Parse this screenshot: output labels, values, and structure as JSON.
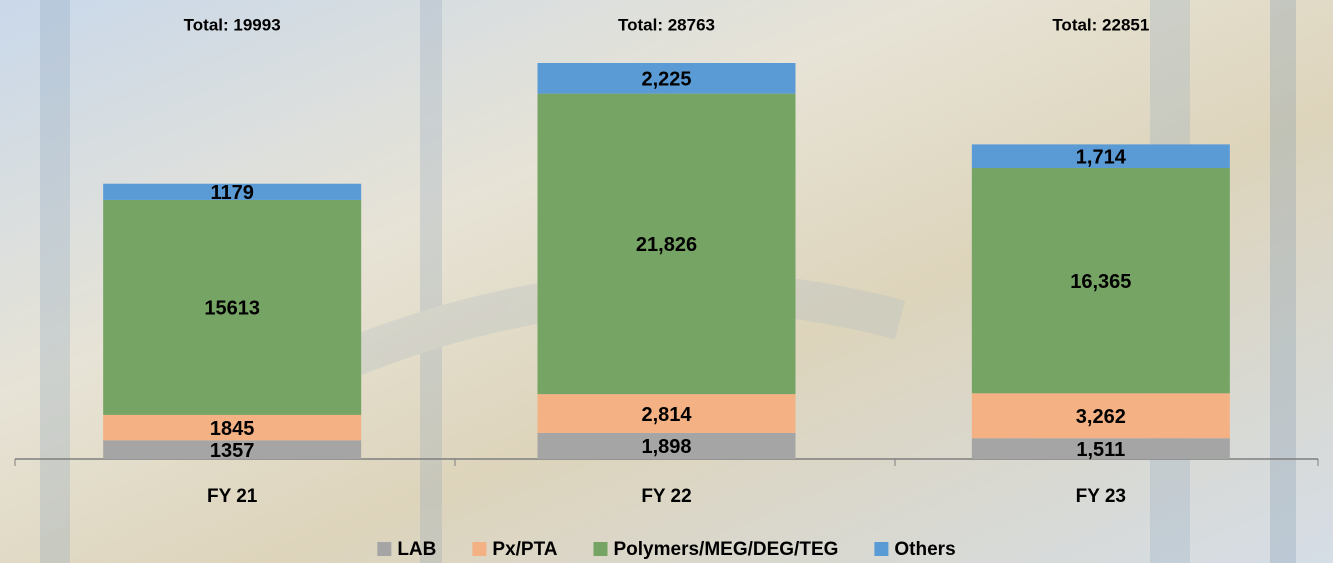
{
  "chart_data": {
    "type": "stacked_bar",
    "categories": [
      "FY 21",
      "FY 22",
      "FY 23"
    ],
    "series": [
      {
        "name": "LAB",
        "color": "#a5a5a5",
        "values": [
          1357,
          1898,
          1511
        ],
        "value_labels": [
          "1357",
          "1,898",
          "1,511"
        ]
      },
      {
        "name": "Px/PTA",
        "color": "#f4b183",
        "values": [
          1845,
          2814,
          3262
        ],
        "value_labels": [
          "1845",
          "2,814",
          "3,262"
        ]
      },
      {
        "name": "Polymers/MEG/DEG/TEG",
        "color": "#76a464",
        "values": [
          15613,
          21826,
          16365
        ],
        "value_labels": [
          "15613",
          "21,826",
          "16,365"
        ]
      },
      {
        "name": "Others",
        "color": "#5b9bd5",
        "values": [
          1179,
          2225,
          1714
        ],
        "value_labels": [
          "1179",
          "2,225",
          "1,714"
        ]
      }
    ],
    "totals": [
      19993,
      28763,
      22851
    ],
    "total_labels": [
      "Total: 19993",
      "Total: 28763",
      "Total: 22851"
    ],
    "legend": "bottom"
  }
}
